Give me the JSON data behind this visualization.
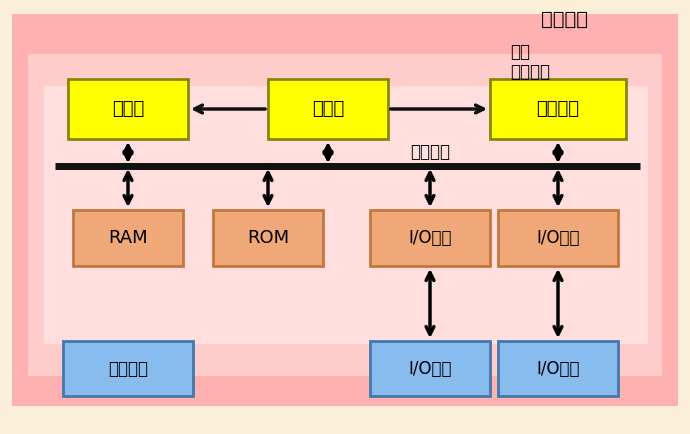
{
  "bg_outer": "#fcefd8",
  "bg_weiji_xitong": "#ffb0b0",
  "bg_weiji": "#ffcccc",
  "bg_weichuliji": "#ffdede",
  "yellow_box_color": "#ffff00",
  "yellow_box_edge": "#888800",
  "orange_box_color": "#f0a878",
  "orange_box_edge": "#c07840",
  "blue_box_color": "#88bbee",
  "blue_box_edge": "#4477aa",
  "bus_line_color": "#111111",
  "arrow_color": "#111111",
  "title_weiji_xitong": "微机系统",
  "label_weiji": "微机",
  "label_weichuliji": "微处理器",
  "label_xitong_zongxian": "系统总线",
  "box_yuansuanqi": "运算器",
  "box_kongzhiqi": "控制器",
  "box_jicunqizu": "寄存器组",
  "box_RAM": "RAM",
  "box_ROM": "ROM",
  "box_IO_jiekou": "I/O接口",
  "box_xitong_ruanjian": "系统软件",
  "box_IO_shebei": "I/O设备",
  "figsize": [
    6.9,
    4.34
  ],
  "dpi": 100
}
